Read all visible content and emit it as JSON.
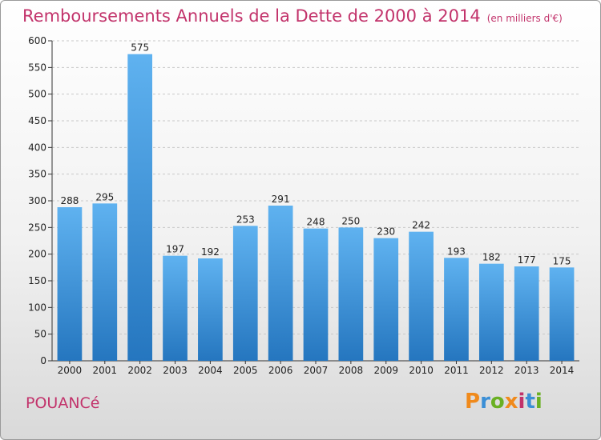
{
  "chart_data": {
    "type": "bar",
    "title": "Remboursements Annuels de la Dette de 2000 à 2014",
    "unit": "(en milliers d'€)",
    "categories": [
      "2000",
      "2001",
      "2002",
      "2003",
      "2004",
      "2005",
      "2006",
      "2007",
      "2008",
      "2009",
      "2010",
      "2011",
      "2012",
      "2013",
      "2014"
    ],
    "values": [
      288,
      295,
      575,
      197,
      192,
      253,
      291,
      248,
      250,
      230,
      242,
      193,
      182,
      177,
      175
    ],
    "ylim": [
      0,
      600
    ],
    "yticks": [
      0,
      50,
      100,
      150,
      200,
      250,
      300,
      350,
      400,
      450,
      500,
      550,
      600
    ],
    "grid": true,
    "xlabel": "",
    "ylabel": "",
    "bar_color": "#3a92dc"
  },
  "footer": {
    "city": "POUANCé",
    "brand": "Proxiti"
  },
  "colors": {
    "title": "#c2336b",
    "logo_letters": [
      "#f08a1c",
      "#3b8fd6",
      "#6ab023",
      "#f08a1c",
      "#c2336b",
      "#3b8fd6",
      "#6ab023"
    ]
  }
}
